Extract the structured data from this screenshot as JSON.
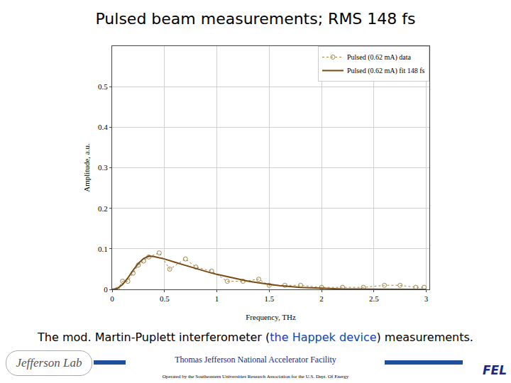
{
  "title": "Pulsed beam measurements; RMS 148 fs",
  "chart_data": {
    "type": "line",
    "x_label": "Frequency, THz",
    "y_label": "Amplitude, a.u.",
    "xlim": [
      0,
      3.03
    ],
    "ylim": [
      0,
      0.6
    ],
    "xticks": [
      0,
      0.5,
      1,
      1.5,
      2,
      2.5,
      3
    ],
    "yticks": [
      0,
      0.1,
      0.2,
      0.3,
      0.4,
      0.5
    ],
    "grid": true,
    "legend": "top right",
    "series": [
      {
        "name": "Pulsed (0.62 mA) data",
        "color": "#a08850",
        "marker": "circle-open",
        "line_style": "dotted",
        "x": [
          0.05,
          0.1,
          0.15,
          0.2,
          0.25,
          0.3,
          0.35,
          0.45,
          0.55,
          0.7,
          0.8,
          0.95,
          1.1,
          1.25,
          1.4,
          1.5,
          1.65,
          1.8,
          2.0,
          2.2,
          2.4,
          2.6,
          2.75,
          2.9,
          2.98
        ],
        "values": [
          0.0,
          0.02,
          0.02,
          0.04,
          0.06,
          0.07,
          0.08,
          0.09,
          0.05,
          0.075,
          0.055,
          0.045,
          0.02,
          0.02,
          0.025,
          0.01,
          0.01,
          0.01,
          0.005,
          0.005,
          0.005,
          0.01,
          0.01,
          0.005,
          0.005
        ]
      },
      {
        "name": "Pulsed (0.62 mA) fit 148 fs",
        "color": "#7a4a10",
        "line_style": "solid",
        "x": [
          0,
          0.05,
          0.1,
          0.15,
          0.2,
          0.25,
          0.3,
          0.35,
          0.4,
          0.5,
          0.6,
          0.7,
          0.8,
          0.9,
          1.0,
          1.1,
          1.2,
          1.3,
          1.4,
          1.5,
          1.6,
          1.8,
          2.0,
          2.2,
          2.5,
          3.0
        ],
        "values": [
          0,
          0.002,
          0.012,
          0.028,
          0.047,
          0.064,
          0.076,
          0.082,
          0.081,
          0.075,
          0.067,
          0.059,
          0.051,
          0.044,
          0.037,
          0.031,
          0.025,
          0.02,
          0.016,
          0.012,
          0.009,
          0.005,
          0.003,
          0.001,
          0.0005,
          0
        ]
      }
    ]
  },
  "caption": {
    "before": "The mod. Martin-Puplett interferometer (",
    "link": "the Happek device",
    "after": ") measurements."
  },
  "footer": [
    "Thomas Jefferson National Accelerator Facility",
    "Operated by the Southeastern Universities Research Association for the U.S. Dept. Of Energy"
  ],
  "logos": [
    "Jefferson Lab",
    "FEL"
  ]
}
